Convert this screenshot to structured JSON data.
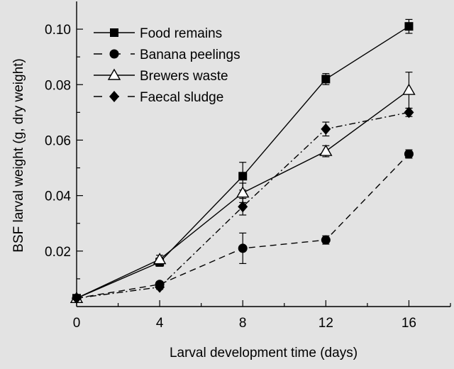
{
  "chart_data": {
    "type": "line",
    "xlabel": "Larval development time (days)",
    "ylabel": "BSF larval weight (g, dry weight)",
    "xlim": [
      0,
      18
    ],
    "ylim": [
      0,
      0.11
    ],
    "xticks": [
      0,
      4,
      8,
      12,
      16
    ],
    "yticks": [
      0.02,
      0.04,
      0.06,
      0.08,
      0.1
    ],
    "xtick_labels": [
      "0",
      "4",
      "8",
      "12",
      "16"
    ],
    "ytick_labels": [
      "0.02",
      "0.04",
      "0.06",
      "0.08",
      "0.10"
    ],
    "legend_position": "top-left",
    "grid": false,
    "series": [
      {
        "name": "Food remains",
        "marker": "square-filled",
        "dash": "solid",
        "x": [
          0,
          4,
          8,
          12,
          16
        ],
        "y": [
          0.003,
          0.016,
          0.047,
          0.082,
          0.101
        ],
        "err": [
          0,
          0.0015,
          0.005,
          0.002,
          0.0025
        ]
      },
      {
        "name": "Banana peelings",
        "marker": "circle-filled",
        "dash": "dashed",
        "x": [
          0,
          4,
          8,
          12,
          16
        ],
        "y": [
          0.003,
          0.008,
          0.021,
          0.024,
          0.055
        ],
        "err": [
          0,
          0.0008,
          0.0055,
          0.0015,
          0.0015
        ]
      },
      {
        "name": "Brewers waste",
        "marker": "triangle-open",
        "dash": "solid",
        "x": [
          0,
          4,
          8,
          12,
          16
        ],
        "y": [
          0.003,
          0.017,
          0.041,
          0.056,
          0.078
        ],
        "err": [
          0,
          0.0015,
          0.0035,
          0.002,
          0.0065
        ]
      },
      {
        "name": "Faecal sludge",
        "marker": "diamond-filled",
        "dash": "dashdot",
        "x": [
          0,
          4,
          8,
          12,
          16
        ],
        "y": [
          0.003,
          0.007,
          0.036,
          0.064,
          0.07
        ],
        "err": [
          0,
          0.0008,
          0.003,
          0.0025,
          0.0015
        ]
      }
    ]
  }
}
